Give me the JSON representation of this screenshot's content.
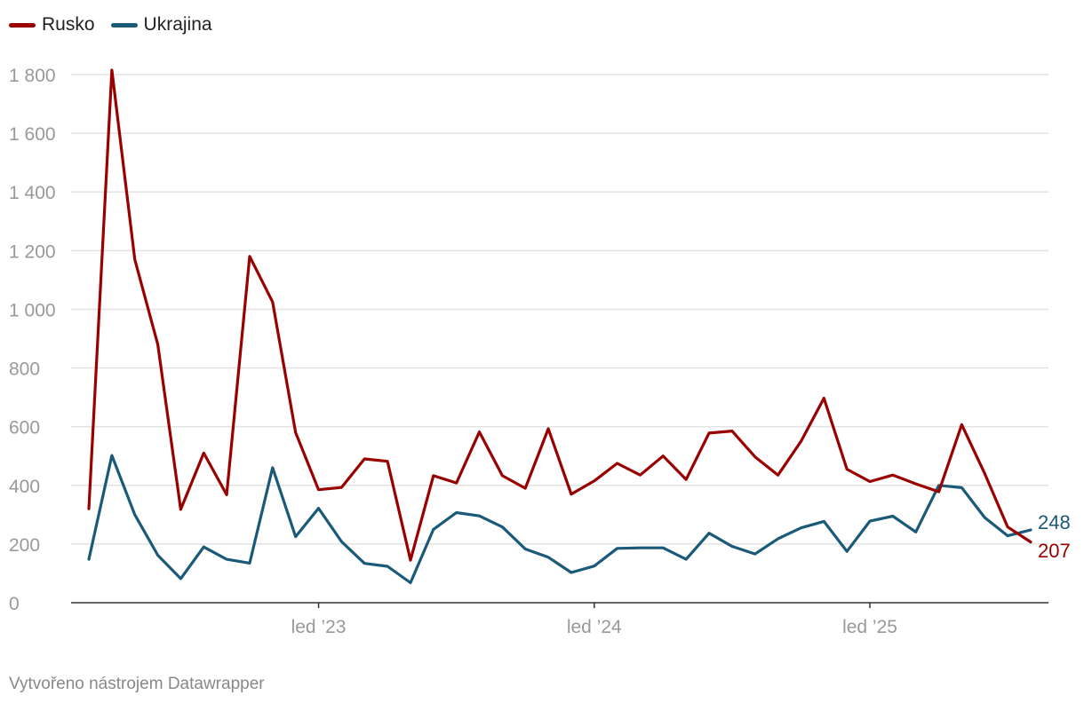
{
  "chart_data": {
    "type": "line",
    "title": "",
    "xlabel": "",
    "ylabel": "",
    "ylim": [
      0,
      1800
    ],
    "yticks": [
      0,
      200,
      400,
      600,
      800,
      1000,
      1200,
      1400,
      1600,
      1800
    ],
    "ytick_labels": [
      "0",
      "200",
      "400",
      "600",
      "800",
      "1 000",
      "1 200",
      "1 400",
      "1 600",
      "1 800"
    ],
    "x_period": "monthly, 2022-03 to 2025-08",
    "xticks": [
      {
        "index": 10,
        "label": "led ’23"
      },
      {
        "index": 22,
        "label": "led ’24"
      },
      {
        "index": 34,
        "label": "led ’25"
      }
    ],
    "grid": true,
    "legend_position": "top-left",
    "series": [
      {
        "name": "Rusko",
        "color": "#990000",
        "end_label": "207",
        "values": [
          320,
          1815,
          1170,
          880,
          318,
          510,
          368,
          1180,
          1025,
          580,
          385,
          393,
          490,
          482,
          145,
          433,
          408,
          582,
          433,
          390,
          593,
          370,
          415,
          475,
          435,
          500,
          420,
          578,
          585,
          497,
          435,
          550,
          697,
          455,
          413,
          435,
          405,
          378,
          607,
          440,
          258,
          207
        ]
      },
      {
        "name": "Ukrajina",
        "color": "#1a5a78",
        "end_label": "248",
        "values": [
          148,
          502,
          300,
          162,
          82,
          190,
          148,
          135,
          460,
          225,
          322,
          208,
          134,
          124,
          68,
          250,
          307,
          296,
          258,
          183,
          155,
          103,
          125,
          185,
          187,
          187,
          148,
          237,
          192,
          166,
          218,
          255,
          277,
          175,
          278,
          295,
          241,
          400,
          392,
          290,
          228,
          248
        ]
      }
    ]
  },
  "footer": {
    "credit": "Vytvořeno nástrojem Datawrapper"
  }
}
